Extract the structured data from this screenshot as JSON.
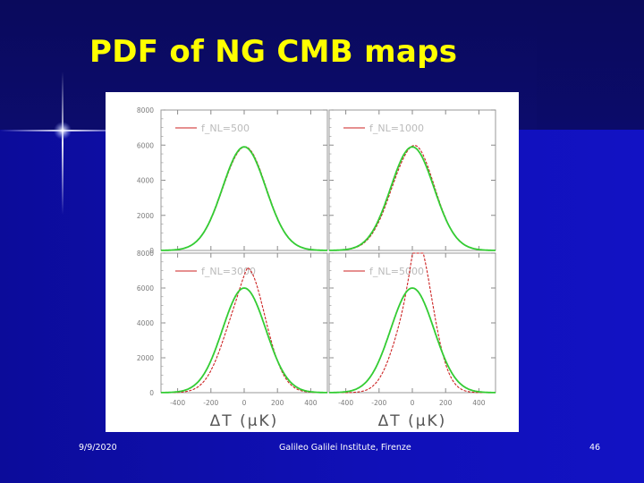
{
  "slide": {
    "title": "PDF of NG CMB maps",
    "footer_date": "9/9/2020",
    "footer_institute": "Galileo Galilei Institute, Firenze",
    "page_number": "46"
  },
  "colors": {
    "title": "#ffff00",
    "non_gaussian_curve": "#cc2222",
    "gaussian_curve": "#33cc33",
    "legend_text": "#bbbbbb"
  },
  "chart_data": [
    {
      "type": "line",
      "legend": "f_NL=500",
      "ylim": [
        0,
        8000
      ],
      "xlim": [
        -500,
        500
      ],
      "yticks": [
        "0",
        "2000",
        "4000",
        "6000",
        "8000"
      ],
      "series": [
        {
          "role": "non-gaussian",
          "color": "#cc2222",
          "peak": 5900,
          "width": 130,
          "skew": 0.02
        },
        {
          "role": "gaussian",
          "color": "#33cc33",
          "peak": 5900,
          "width": 130,
          "skew": 0
        }
      ]
    },
    {
      "type": "line",
      "legend": "f_NL=1000",
      "ylim": [
        0,
        8000
      ],
      "xlim": [
        -500,
        500
      ],
      "yticks": [
        "0",
        "2000",
        "4000",
        "6000",
        "8000"
      ],
      "series": [
        {
          "role": "non-gaussian",
          "color": "#cc2222",
          "peak": 5950,
          "width": 128,
          "skew": 0.05
        },
        {
          "role": "gaussian",
          "color": "#33cc33",
          "peak": 5900,
          "width": 130,
          "skew": 0
        }
      ]
    },
    {
      "type": "line",
      "legend": "f_NL=3000",
      "xlabel": "ΔT (μK)",
      "ylim": [
        0,
        8000
      ],
      "xlim": [
        -500,
        500
      ],
      "yticks": [
        "0",
        "2000",
        "4000",
        "6000",
        "8000"
      ],
      "xticks": [
        "-400",
        "-200",
        "0",
        "200",
        "400"
      ],
      "series": [
        {
          "role": "non-gaussian",
          "color": "#cc2222",
          "peak": 6500,
          "width": 118,
          "skew": 0.18
        },
        {
          "role": "gaussian",
          "color": "#33cc33",
          "peak": 6000,
          "width": 130,
          "skew": 0
        }
      ]
    },
    {
      "type": "line",
      "legend": "f_NL=5000",
      "xlabel": "ΔT (μK)",
      "ylim": [
        0,
        8000
      ],
      "xlim": [
        -500,
        500
      ],
      "yticks": [
        "0",
        "2000",
        "4000",
        "6000",
        "8000"
      ],
      "xticks": [
        "-400",
        "-200",
        "0",
        "200",
        "400"
      ],
      "series": [
        {
          "role": "non-gaussian",
          "color": "#cc2222",
          "peak": 7500,
          "width": 105,
          "skew": 0.35
        },
        {
          "role": "gaussian",
          "color": "#33cc33",
          "peak": 6000,
          "width": 130,
          "skew": 0
        }
      ]
    }
  ]
}
